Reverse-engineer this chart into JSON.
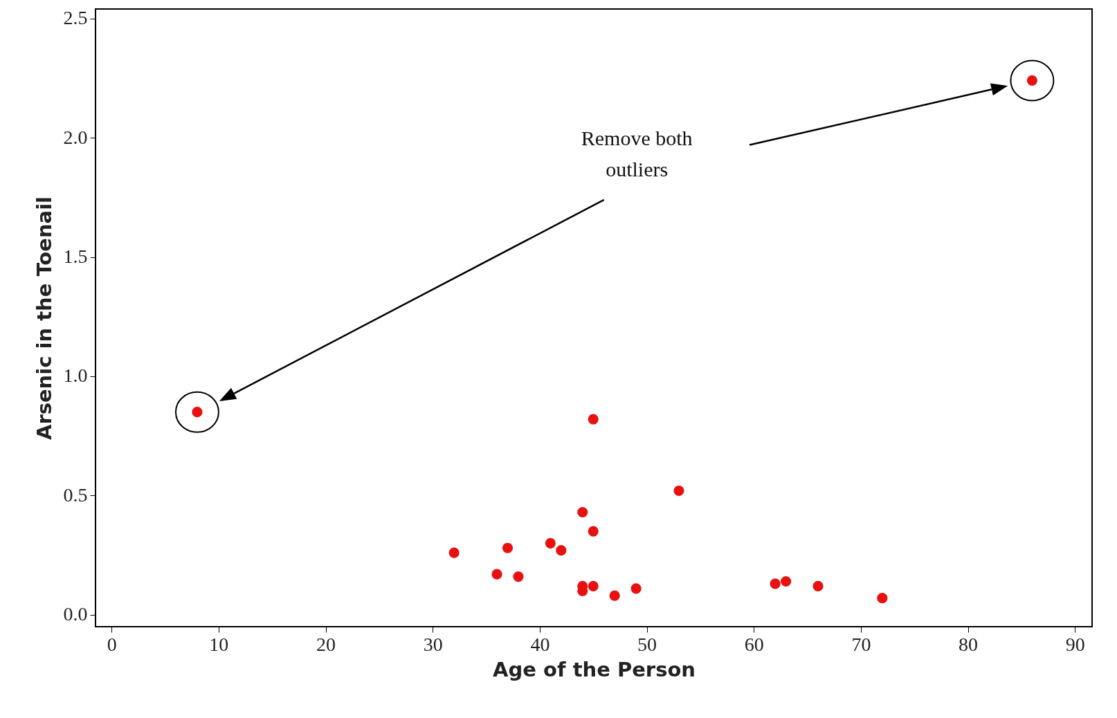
{
  "chart_data": {
    "type": "scatter",
    "xlabel": "Age of the Person",
    "ylabel": "Arsenic in the Toenail",
    "x": [
      8,
      86,
      45,
      53,
      44,
      45,
      32,
      37,
      41,
      42,
      36,
      38,
      44,
      44,
      45,
      47,
      49,
      62,
      63,
      66,
      72
    ],
    "series": [
      {
        "color": "#e8110f",
        "values": [
          0.85,
          2.24,
          0.82,
          0.52,
          0.43,
          0.35,
          0.26,
          0.28,
          0.3,
          0.27,
          0.17,
          0.16,
          0.12,
          0.1,
          0.12,
          0.08,
          0.11,
          0.13,
          0.14,
          0.12,
          0.07
        ]
      }
    ],
    "xlim": [
      -1.5,
      91.6
    ],
    "ylim": [
      -0.05,
      2.54
    ],
    "xticks": [
      0,
      10,
      20,
      30,
      40,
      50,
      60,
      70,
      80,
      90
    ],
    "yticks": [
      {
        "value": 0,
        "label": "0.0"
      },
      0.5,
      {
        "value": 1,
        "label": "1.0"
      },
      1.5,
      {
        "value": 2,
        "label": "2.0"
      },
      2.5
    ],
    "marker": "circle",
    "grid": false,
    "annotations": [
      "Remove both outliers"
    ]
  }
}
